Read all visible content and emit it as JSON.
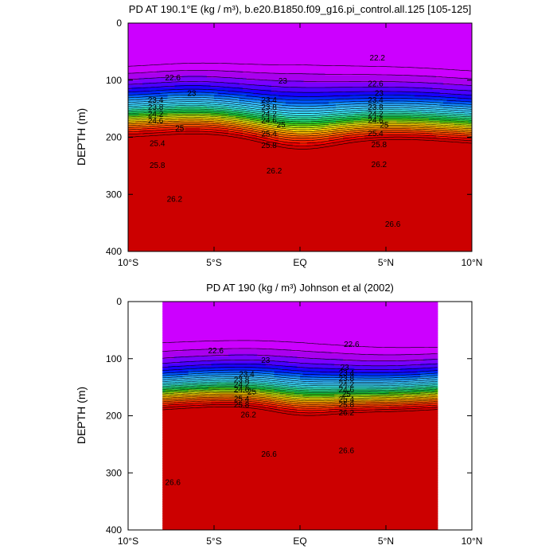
{
  "chart_data": [
    {
      "type": "contour",
      "title": "PD AT 190.1°E (kg / m³), b.e20.B1850.f09_g16.pi_control.all.125 [105-125]",
      "ylabel": "DEPTH (m)",
      "xlabel": "",
      "xlim": [
        -10,
        10
      ],
      "ylim": [
        400,
        0
      ],
      "x_ticks": [
        -10,
        -5,
        0,
        5,
        10
      ],
      "x_tick_labels": [
        "10°S",
        "5°S",
        "EQ",
        "5°N",
        "10°N"
      ],
      "y_ticks": [
        0,
        100,
        200,
        300,
        400
      ],
      "y_tick_labels": [
        "0",
        "100",
        "200",
        "300",
        "400"
      ],
      "data_extent_lat": [
        -10,
        10
      ],
      "levels": [
        21.4,
        21.6,
        21.8,
        22.0,
        22.2,
        22.4,
        22.6,
        22.8,
        23.0,
        23.2,
        23.4,
        23.6,
        23.8,
        24.0,
        24.2,
        24.4,
        24.6,
        24.8,
        25.0,
        25.2,
        25.4,
        25.6,
        25.8,
        26.0,
        26.2,
        26.4,
        26.6,
        26.8
      ],
      "contour_labels": [
        {
          "text": "22.2",
          "lat": 4.5,
          "depth": 60
        },
        {
          "text": "22.6",
          "lat": -7.4,
          "depth": 95
        },
        {
          "text": "22.6",
          "lat": 4.4,
          "depth": 105
        },
        {
          "text": "23",
          "lat": -6.3,
          "depth": 122
        },
        {
          "text": "23",
          "lat": -1.0,
          "depth": 100
        },
        {
          "text": "23",
          "lat": 4.6,
          "depth": 122
        },
        {
          "text": "23.4",
          "lat": -8.4,
          "depth": 134
        },
        {
          "text": "23.4",
          "lat": -1.8,
          "depth": 134
        },
        {
          "text": "23.4",
          "lat": 4.4,
          "depth": 134
        },
        {
          "text": "23.8",
          "lat": -8.4,
          "depth": 146
        },
        {
          "text": "23.8",
          "lat": -1.8,
          "depth": 146
        },
        {
          "text": "23.8",
          "lat": 4.4,
          "depth": 146
        },
        {
          "text": "24.2",
          "lat": -8.4,
          "depth": 158
        },
        {
          "text": "24.2",
          "lat": -1.8,
          "depth": 158
        },
        {
          "text": "24.2",
          "lat": 4.4,
          "depth": 158
        },
        {
          "text": "24.6",
          "lat": -8.4,
          "depth": 170
        },
        {
          "text": "24.6",
          "lat": -1.8,
          "depth": 169
        },
        {
          "text": "24.6",
          "lat": 4.4,
          "depth": 169
        },
        {
          "text": "25",
          "lat": -7.0,
          "depth": 183
        },
        {
          "text": "25",
          "lat": -1.1,
          "depth": 177
        },
        {
          "text": "25",
          "lat": 4.9,
          "depth": 178
        },
        {
          "text": "25.4",
          "lat": -8.3,
          "depth": 210
        },
        {
          "text": "25.4",
          "lat": -1.8,
          "depth": 193
        },
        {
          "text": "25.4",
          "lat": 4.4,
          "depth": 192
        },
        {
          "text": "25.8",
          "lat": -8.3,
          "depth": 248
        },
        {
          "text": "25.8",
          "lat": -1.8,
          "depth": 213
        },
        {
          "text": "25.8",
          "lat": 4.6,
          "depth": 212
        },
        {
          "text": "26.2",
          "lat": -7.3,
          "depth": 307
        },
        {
          "text": "26.2",
          "lat": -1.5,
          "depth": 258
        },
        {
          "text": "26.2",
          "lat": 4.6,
          "depth": 247
        },
        {
          "text": "26.6",
          "lat": 5.4,
          "depth": 351
        }
      ]
    },
    {
      "type": "contour",
      "title": "PD AT 190 (kg / m³) Johnson et al (2002)",
      "ylabel": "DEPTH (m)",
      "xlabel": "",
      "xlim": [
        -10,
        10
      ],
      "ylim": [
        400,
        0
      ],
      "x_ticks": [
        -10,
        -5,
        0,
        5,
        10
      ],
      "x_tick_labels": [
        "10°S",
        "5°S",
        "EQ",
        "5°N",
        "10°N"
      ],
      "y_ticks": [
        0,
        100,
        200,
        300,
        400
      ],
      "y_tick_labels": [
        "0",
        "100",
        "200",
        "300",
        "400"
      ],
      "data_extent_lat": [
        -8,
        8
      ],
      "levels": [
        21.4,
        21.6,
        21.8,
        22.0,
        22.2,
        22.4,
        22.6,
        22.8,
        23.0,
        23.2,
        23.4,
        23.6,
        23.8,
        24.0,
        24.2,
        24.4,
        24.6,
        24.8,
        25.0,
        25.2,
        25.4,
        25.6,
        25.8,
        26.0,
        26.2,
        26.4,
        26.6,
        26.8
      ],
      "contour_labels": [
        {
          "text": "22.6",
          "lat": -4.9,
          "depth": 85
        },
        {
          "text": "22.6",
          "lat": 3.0,
          "depth": 74
        },
        {
          "text": "23",
          "lat": -2.0,
          "depth": 102
        },
        {
          "text": "23.4",
          "lat": -3.1,
          "depth": 126
        },
        {
          "text": "23.8",
          "lat": -3.4,
          "depth": 136
        },
        {
          "text": "24.2",
          "lat": -3.4,
          "depth": 144
        },
        {
          "text": "24.6",
          "lat": -3.4,
          "depth": 153
        },
        {
          "text": "25",
          "lat": -2.8,
          "depth": 157
        },
        {
          "text": "25.4",
          "lat": -3.4,
          "depth": 169
        },
        {
          "text": "25.8",
          "lat": -3.4,
          "depth": 180
        },
        {
          "text": "26.2",
          "lat": -3.0,
          "depth": 197
        },
        {
          "text": "23",
          "lat": 2.6,
          "depth": 114
        },
        {
          "text": "23.4",
          "lat": 2.7,
          "depth": 124
        },
        {
          "text": "23.8",
          "lat": 2.7,
          "depth": 134
        },
        {
          "text": "24.2",
          "lat": 2.7,
          "depth": 144
        },
        {
          "text": "24.6",
          "lat": 2.7,
          "depth": 153
        },
        {
          "text": "25",
          "lat": 2.7,
          "depth": 161
        },
        {
          "text": "25.4",
          "lat": 2.7,
          "depth": 170
        },
        {
          "text": "25.8",
          "lat": 2.7,
          "depth": 180
        },
        {
          "text": "26.2",
          "lat": 2.7,
          "depth": 194
        },
        {
          "text": "26.6",
          "lat": -1.8,
          "depth": 266
        },
        {
          "text": "26.6",
          "lat": 2.7,
          "depth": 260
        },
        {
          "text": "26.6",
          "lat": -7.4,
          "depth": 316
        }
      ]
    }
  ]
}
